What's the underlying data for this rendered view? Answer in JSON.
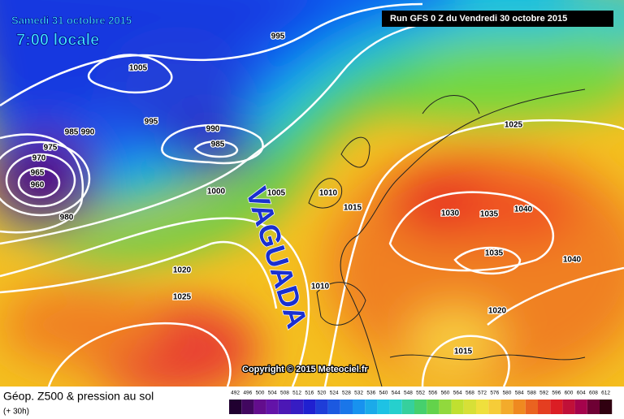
{
  "header": {
    "date": "Samedi 31 octobre 2015",
    "time": "7:00 locale",
    "run": "Run GFS 0 Z du Vendredi 30 octobre 2015"
  },
  "annotation": "VAGUADA",
  "isobar_labels": [
    "995",
    "1005",
    "995",
    "990",
    "985",
    "990",
    "985",
    "975",
    "970",
    "965",
    "960",
    "980",
    "1000",
    "1005",
    "1010",
    "1015",
    "1020",
    "1025",
    "1010",
    "1025",
    "1030",
    "1035",
    "1040",
    "1035",
    "1040",
    "1020",
    "1015"
  ],
  "copyright": "Copyright © 2015 Meteociel.fr",
  "legend": {
    "title": "Géop. Z500 & pression au sol",
    "lead": "(+ 30h)",
    "scale": [
      492,
      496,
      500,
      504,
      508,
      512,
      516,
      520,
      524,
      528,
      532,
      536,
      540,
      544,
      548,
      552,
      556,
      560,
      564,
      568,
      572,
      576,
      580,
      584,
      588,
      592,
      596,
      600,
      604,
      608,
      612
    ]
  }
}
